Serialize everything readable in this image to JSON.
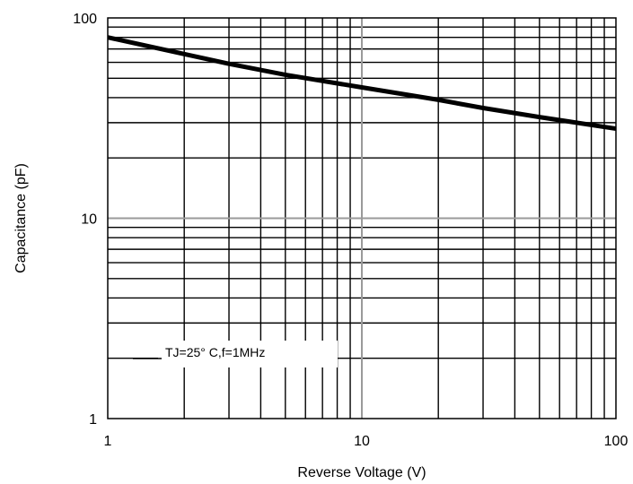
{
  "chart_data": {
    "type": "line",
    "title": "",
    "xlabel": "Reverse Voltage (V)",
    "ylabel": "Capacitance (pF)",
    "x_scale": "log",
    "y_scale": "log",
    "xlim": [
      1,
      100
    ],
    "ylim": [
      1,
      100
    ],
    "x_ticks": [
      "1",
      "10",
      "100"
    ],
    "y_ticks": [
      "1",
      "10",
      "100"
    ],
    "grid": true,
    "annotation": "TJ=25° C,f=1MHz",
    "series": [
      {
        "x": [
          1,
          2,
          3,
          5,
          10,
          20,
          30,
          50,
          100
        ],
        "y": [
          80,
          66,
          59,
          52,
          45,
          39,
          35.5,
          32,
          28
        ]
      }
    ]
  }
}
